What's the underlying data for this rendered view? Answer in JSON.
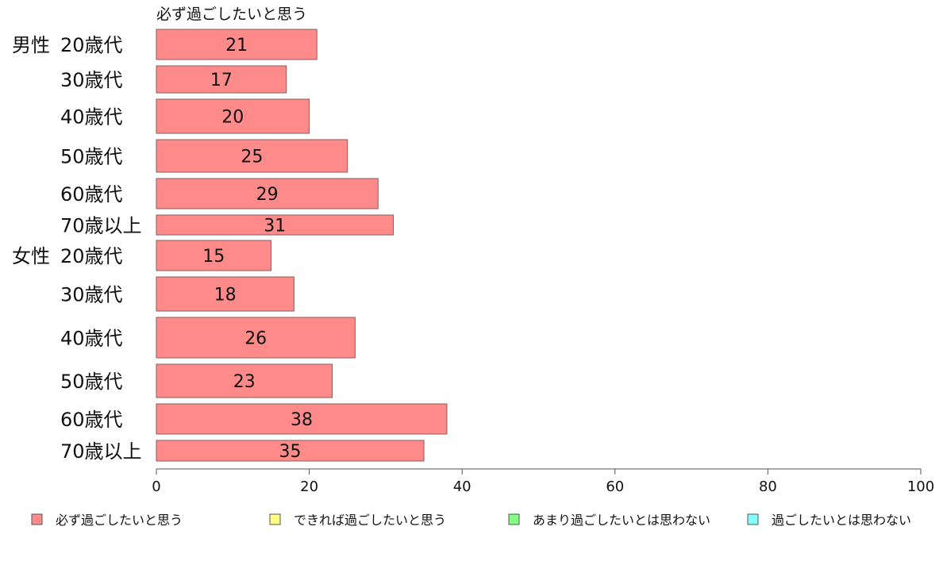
{
  "chart_data": {
    "type": "bar",
    "orientation": "horizontal",
    "groups": [
      "男性",
      "女性"
    ],
    "categories": [
      "20歳代",
      "30歳代",
      "40歳代",
      "50歳代",
      "60歳代",
      "70歳以上",
      "20歳代",
      "30歳代",
      "40歳代",
      "50歳代",
      "60歳代",
      "70歳以上"
    ],
    "series": [
      {
        "name": "必ず過ごしたいと思う",
        "color": "#ff8a8a",
        "values": [
          21,
          17,
          20,
          25,
          29,
          31,
          15,
          18,
          26,
          23,
          38,
          35
        ]
      }
    ],
    "xlim": [
      0,
      100
    ],
    "xticks": [
      "0",
      "20",
      "40",
      "60",
      "80",
      "100"
    ],
    "grid": false,
    "legend_position": "bottom",
    "legend": [
      {
        "label": "必ず過ごしたいと思う",
        "color": "#ff8a8a"
      },
      {
        "label": "できれば過ごしたいと思う",
        "color": "#ffff80"
      },
      {
        "label": "あまり過ごしたいとは思わない",
        "color": "#80ff80"
      },
      {
        "label": "過ごしたいとは思わない",
        "color": "#80ffff"
      }
    ],
    "series_header": "必ず過ごしたいと思う"
  }
}
